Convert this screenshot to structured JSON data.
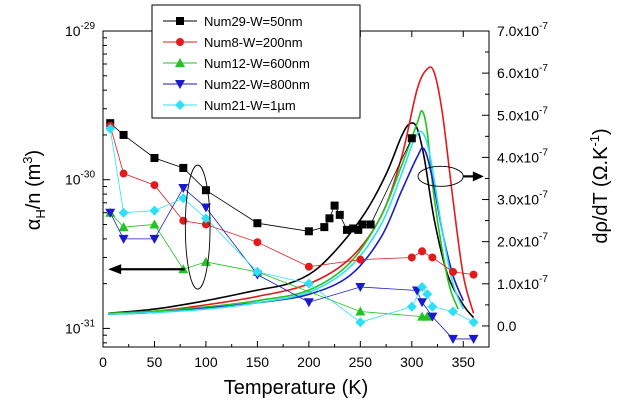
{
  "chart_data": {
    "type": "scatter",
    "x_axis": {
      "label": "Temperature (K)",
      "range": [
        0,
        375
      ],
      "ticks": [
        "0",
        "50",
        "100",
        "150",
        "200",
        "250",
        "300",
        "350"
      ]
    },
    "y_left": {
      "label_main": "α",
      "label_sub": "H",
      "label_rest": "/n (m",
      "label_sup": "3",
      "label_end": ")",
      "scale": "log",
      "range": [
        7.5e-32,
        1e-29
      ],
      "tick_labels": [
        {
          "base": "10",
          "exp": "-29",
          "value": 1e-29
        },
        {
          "base": "10",
          "exp": "-30",
          "value": 1e-30
        },
        {
          "base": "10",
          "exp": "-31",
          "value": 1e-31
        }
      ]
    },
    "y_right": {
      "label_main": "dρ/dT (Ω.K",
      "label_sup": "-1",
      "label_end": ")",
      "range": [
        -5e-08,
        7e-07
      ],
      "tick_labels": [
        "7.0x10",
        "6.0x10",
        "5.0x10",
        "4.0x10",
        "3.0x10",
        "2.0x10",
        "1.0x10",
        "0.0"
      ],
      "tick_exp": "-7",
      "tick_values": [
        7e-07,
        6e-07,
        5e-07,
        4e-07,
        3e-07,
        2e-07,
        1e-07,
        0
      ]
    },
    "legend": {
      "placement": "top-left"
    },
    "series": [
      {
        "name": "Num29-W=50nm",
        "color": "#000000",
        "marker": "square",
        "points": [
          [
            7,
            2.4e-30
          ],
          [
            20,
            2e-30
          ],
          [
            50,
            1.4e-30
          ],
          [
            78,
            1.2e-30
          ],
          [
            100,
            8.5e-31
          ],
          [
            150,
            5.1e-31
          ],
          [
            200,
            4.5e-31
          ],
          [
            215,
            4.8e-31
          ],
          [
            220,
            5.5e-31
          ],
          [
            225,
            6.7e-31
          ],
          [
            230,
            5.8e-31
          ],
          [
            237,
            4.6e-31
          ],
          [
            243,
            4.7e-31
          ],
          [
            248,
            4.6e-31
          ],
          [
            252,
            5e-31
          ],
          [
            260,
            5e-31
          ],
          [
            300,
            1.9e-30
          ]
        ],
        "curve": [
          [
            5,
            3e-08
          ],
          [
            50,
            4e-08
          ],
          [
            100,
            6e-08
          ],
          [
            150,
            8.5e-08
          ],
          [
            180,
            1e-07
          ],
          [
            205,
            1.3e-07
          ],
          [
            230,
            1.9e-07
          ],
          [
            255,
            2.7e-07
          ],
          [
            275,
            3.6e-07
          ],
          [
            290,
            4.5e-07
          ],
          [
            298,
            4.8e-07
          ],
          [
            305,
            4.7e-07
          ],
          [
            312,
            4e-07
          ],
          [
            322,
            2.5e-07
          ],
          [
            335,
            1.2e-07
          ],
          [
            350,
            5e-08
          ],
          [
            360,
            2e-08
          ]
        ]
      },
      {
        "name": "Num8-W=200nm",
        "color": "#e31a1c",
        "marker": "circle",
        "points": [
          [
            7,
            2.3e-30
          ],
          [
            20,
            1.1e-30
          ],
          [
            50,
            9.2e-31
          ],
          [
            78,
            5.3e-31
          ],
          [
            100,
            5e-31
          ],
          [
            150,
            3.8e-31
          ],
          [
            200,
            2.6e-31
          ],
          [
            250,
            2.9e-31
          ],
          [
            300,
            3e-31
          ],
          [
            310,
            3.3e-31
          ],
          [
            320,
            3e-31
          ],
          [
            340,
            2.4e-31
          ],
          [
            360,
            2.3e-31
          ]
        ],
        "curve": [
          [
            5,
            3e-08
          ],
          [
            50,
            3.5e-08
          ],
          [
            100,
            5e-08
          ],
          [
            150,
            7e-08
          ],
          [
            200,
            1e-07
          ],
          [
            240,
            1.6e-07
          ],
          [
            270,
            2.6e-07
          ],
          [
            290,
            4e-07
          ],
          [
            305,
            5.6e-07
          ],
          [
            315,
            6.1e-07
          ],
          [
            322,
            6e-07
          ],
          [
            330,
            5e-07
          ],
          [
            340,
            3e-07
          ],
          [
            350,
            1.2e-07
          ],
          [
            360,
            3e-08
          ]
        ]
      },
      {
        "name": "Num12-W=600nm",
        "color": "#22c322",
        "marker": "triangle",
        "points": [
          [
            7,
            6e-31
          ],
          [
            20,
            4.8e-31
          ],
          [
            50,
            5e-31
          ],
          [
            78,
            2.5e-31
          ],
          [
            100,
            2.8e-31
          ],
          [
            150,
            2.4e-31
          ],
          [
            250,
            1.3e-31
          ],
          [
            310,
            1.2e-31
          ],
          [
            315,
            1.2e-31
          ]
        ],
        "curve": [
          [
            5,
            3e-08
          ],
          [
            50,
            3.5e-08
          ],
          [
            100,
            4.5e-08
          ],
          [
            150,
            6e-08
          ],
          [
            200,
            8.5e-08
          ],
          [
            240,
            1.5e-07
          ],
          [
            270,
            2.6e-07
          ],
          [
            290,
            3.8e-07
          ],
          [
            305,
            4.8e-07
          ],
          [
            310,
            5.1e-07
          ],
          [
            315,
            4.6e-07
          ],
          [
            322,
            3e-07
          ],
          [
            335,
            1.1e-07
          ],
          [
            345,
            4e-08
          ]
        ]
      },
      {
        "name": "Num22-W=800nm",
        "color": "#1a1acc",
        "marker": "triangle-down",
        "points": [
          [
            7,
            6e-31
          ],
          [
            20,
            4e-31
          ],
          [
            50,
            4e-31
          ],
          [
            78,
            8.8e-31
          ],
          [
            100,
            6.5e-31
          ],
          [
            150,
            2.3e-31
          ],
          [
            200,
            1.5e-31
          ],
          [
            250,
            1.9e-31
          ],
          [
            305,
            1.8e-31
          ],
          [
            310,
            1.5e-31
          ],
          [
            320,
            1.2e-31
          ],
          [
            340,
            8.5e-32
          ],
          [
            360,
            8.5e-32
          ]
        ],
        "curve": [
          [
            5,
            2.8e-08
          ],
          [
            50,
            3.2e-08
          ],
          [
            100,
            4.2e-08
          ],
          [
            150,
            5.5e-08
          ],
          [
            200,
            7.5e-08
          ],
          [
            240,
            1.2e-07
          ],
          [
            270,
            2.1e-07
          ],
          [
            290,
            3.2e-07
          ],
          [
            305,
            4e-07
          ],
          [
            312,
            4.2e-07
          ],
          [
            320,
            3.5e-07
          ],
          [
            330,
            2.2e-07
          ],
          [
            340,
            1.2e-07
          ],
          [
            350,
            6e-08
          ]
        ]
      },
      {
        "name": "Num21-W=1µm",
        "color": "#2ee0f5",
        "marker": "diamond",
        "points": [
          [
            7,
            2.2e-30
          ],
          [
            20,
            6e-31
          ],
          [
            50,
            6.2e-31
          ],
          [
            78,
            7.5e-31
          ],
          [
            100,
            5.5e-31
          ],
          [
            150,
            2.4e-31
          ],
          [
            200,
            2e-31
          ],
          [
            250,
            1.1e-31
          ],
          [
            300,
            1.4e-31
          ],
          [
            310,
            1.9e-31
          ],
          [
            315,
            1.7e-31
          ],
          [
            320,
            1.4e-31
          ],
          [
            340,
            1.3e-31
          ],
          [
            360,
            1.1e-31
          ]
        ],
        "curve": [
          [
            5,
            2.8e-08
          ],
          [
            50,
            3.2e-08
          ],
          [
            100,
            4e-08
          ],
          [
            150,
            5.5e-08
          ],
          [
            200,
            8e-08
          ],
          [
            240,
            1.4e-07
          ],
          [
            270,
            2.4e-07
          ],
          [
            290,
            3.6e-07
          ],
          [
            302,
            4.4e-07
          ],
          [
            310,
            4.6e-07
          ],
          [
            318,
            4e-07
          ],
          [
            330,
            2.2e-07
          ],
          [
            340,
            1e-07
          ],
          [
            350,
            4e-08
          ]
        ]
      }
    ],
    "annotations": [
      {
        "kind": "ellipse",
        "cx": 92,
        "cy_log": 4.8e-31,
        "rx_data": 12,
        "points_to": "left-axis",
        "arrow_to_x": 5,
        "arrow_y_log": 2.5e-31
      },
      {
        "kind": "ellipse",
        "cx": 328,
        "cy_right": 3.55e-07,
        "rx_data": 22,
        "points_to": "right-axis",
        "arrow_to_x": 370
      }
    ]
  }
}
